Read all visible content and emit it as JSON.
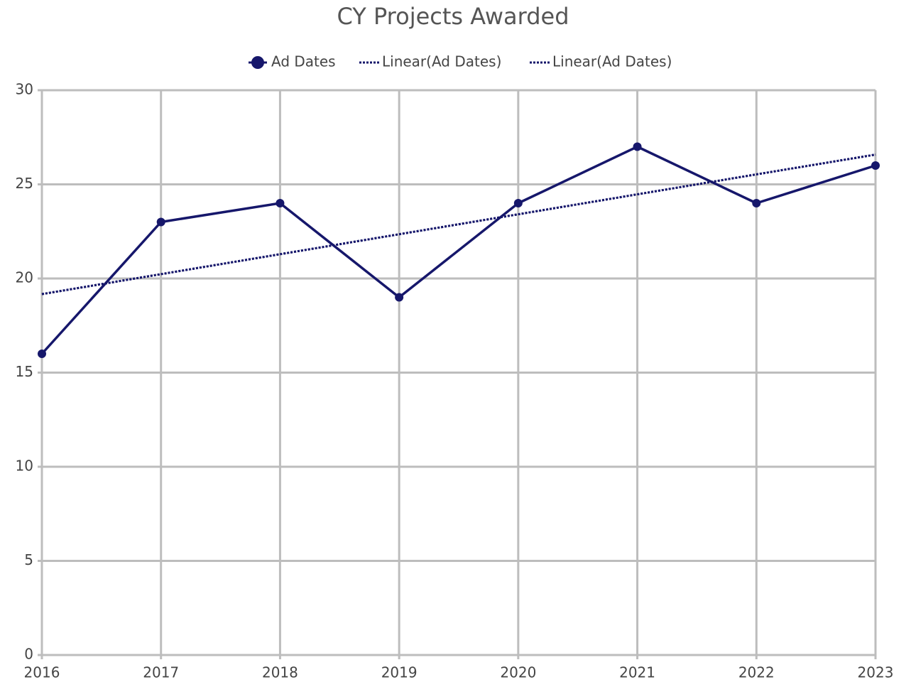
{
  "chart_data": {
    "type": "line",
    "title": "CY Projects Awarded",
    "categories": [
      "2016",
      "2017",
      "2018",
      "2019",
      "2020",
      "2021",
      "2022",
      "2023"
    ],
    "series": [
      {
        "name": "Ad Dates",
        "color": "#16176b",
        "line_style": "solid",
        "markers": true,
        "values": [
          16,
          23,
          24,
          19,
          24,
          27,
          24,
          26
        ]
      },
      {
        "name": "Linear(Ad Dates)",
        "color": "#16176b",
        "line_style": "dotted",
        "markers": false,
        "values": [
          19.17,
          20.23,
          21.29,
          22.35,
          23.41,
          24.47,
          25.53,
          26.58
        ]
      },
      {
        "name": "Linear(Ad Dates)",
        "color": "#16176b",
        "line_style": "dotted",
        "markers": false,
        "values": [
          19.17,
          20.23,
          21.29,
          22.35,
          23.41,
          24.47,
          25.53,
          26.58
        ]
      }
    ],
    "ylim": [
      0,
      30
    ],
    "yticks": [
      0,
      5,
      10,
      15,
      20,
      25,
      30
    ],
    "grid": true,
    "legend": "top"
  }
}
